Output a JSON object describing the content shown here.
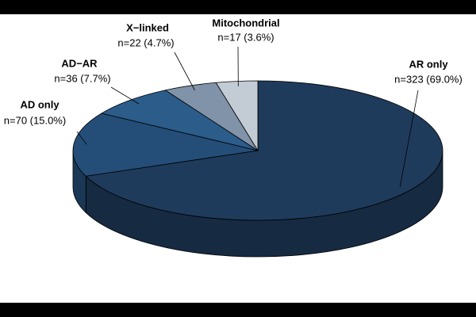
{
  "chart_data": {
    "type": "pie",
    "categories": [
      "AR only",
      "AD only",
      "AD−AR",
      "X−linked",
      "Mitochondrial"
    ],
    "values": [
      323,
      70,
      36,
      22,
      17
    ],
    "value_labels": [
      "n=323 (69.0%)",
      "n=70 (15.0%)",
      "n=36 (7.7%)",
      "n=22 (4.7%)",
      "n=17 (3.6%)"
    ],
    "colors": [
      "#1f3b5c",
      "#244e78",
      "#2b5c8a",
      "#8093a8",
      "#c3cbd4"
    ]
  }
}
